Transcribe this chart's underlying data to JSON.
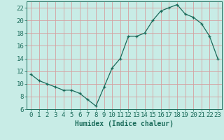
{
  "x": [
    0,
    1,
    2,
    3,
    4,
    5,
    6,
    7,
    8,
    9,
    10,
    11,
    12,
    13,
    14,
    15,
    16,
    17,
    18,
    19,
    20,
    21,
    22,
    23
  ],
  "y": [
    11.5,
    10.5,
    10.0,
    9.5,
    9.0,
    9.0,
    8.5,
    7.5,
    6.5,
    9.5,
    12.5,
    14.0,
    17.5,
    17.5,
    18.0,
    20.0,
    21.5,
    22.0,
    22.5,
    21.0,
    20.5,
    19.5,
    17.5,
    14.0
  ],
  "line_color": "#1a6b5a",
  "marker": "P",
  "bg_color": "#c8ece6",
  "grid_color": "#d4a0a0",
  "xlabel": "Humidex (Indice chaleur)",
  "xlim": [
    -0.5,
    23.5
  ],
  "ylim": [
    6,
    23
  ],
  "yticks": [
    6,
    8,
    10,
    12,
    14,
    16,
    18,
    20,
    22
  ],
  "xticks": [
    0,
    1,
    2,
    3,
    4,
    5,
    6,
    7,
    8,
    9,
    10,
    11,
    12,
    13,
    14,
    15,
    16,
    17,
    18,
    19,
    20,
    21,
    22,
    23
  ],
  "font_size": 6.5,
  "xlabel_fontsize": 7.0
}
